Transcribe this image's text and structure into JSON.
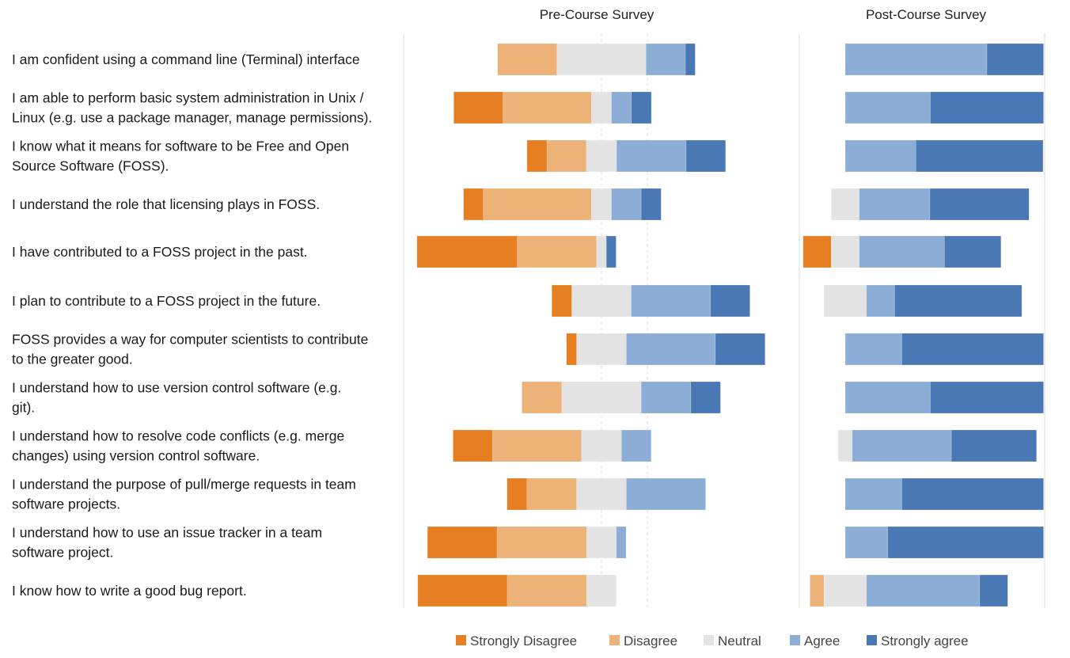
{
  "chart_data": {
    "type": "bar",
    "subtype": "diverging-stacked-horizontal",
    "panels": [
      {
        "title": "Pre-Course Survey",
        "series": [
          {
            "name": "Strongly Disagree",
            "values": [
              0,
              10.1,
              4.1,
              4.1,
              20.6,
              4.1,
              2.1,
              0,
              8.1,
              4.1,
              14.3,
              18.4
            ]
          },
          {
            "name": "Disagree",
            "values": [
              12.2,
              18.2,
              8.1,
              22.2,
              16.3,
              0,
              0,
              8.2,
              18.3,
              10.2,
              18.4,
              16.3
            ]
          },
          {
            "name": "Neutral",
            "values": [
              18.3,
              4.1,
              6.2,
              4.1,
              2.0,
              12.2,
              10.2,
              16.3,
              8.2,
              10.2,
              6.1,
              6.1
            ]
          },
          {
            "name": "Agree",
            "values": [
              8.1,
              4.1,
              14.3,
              6.1,
              0,
              16.3,
              18.3,
              10.2,
              6.1,
              16.3,
              2.0,
              0
            ]
          },
          {
            "name": "Strongly agree",
            "values": [
              2.0,
              4.1,
              8.1,
              4.1,
              2.0,
              8.1,
              10.2,
              6.1,
              0,
              0,
              0,
              0
            ]
          }
        ]
      },
      {
        "title": "Post-Course Survey",
        "series": [
          {
            "name": "Strongly Disagree",
            "values": [
              0,
              0,
              0,
              0,
              6.2,
              0,
              0,
              0,
              0,
              0,
              0,
              0
            ]
          },
          {
            "name": "Disagree",
            "values": [
              0,
              0,
              0,
              0,
              0,
              0,
              0,
              0,
              0,
              0,
              0,
              3.1
            ]
          },
          {
            "name": "Neutral",
            "values": [
              0,
              0,
              0,
              6.2,
              6.2,
              9.4,
              0,
              0,
              3.1,
              0,
              0,
              9.4
            ]
          },
          {
            "name": "Agree",
            "values": [
              31.3,
              18.8,
              15.6,
              15.6,
              18.8,
              6.2,
              12.5,
              18.8,
              21.9,
              12.5,
              9.4,
              25.0
            ]
          },
          {
            "name": "Strongly agree",
            "values": [
              12.5,
              25.0,
              28.1,
              21.9,
              12.5,
              28.1,
              31.3,
              25.0,
              18.8,
              31.3,
              34.4,
              6.2
            ]
          }
        ]
      }
    ],
    "categories": [
      "I am confident using a command line (Terminal) interface",
      "I am able to perform basic system administration in Unix / Linux (e.g. use a package manager, manage permissions).",
      "I know what it means for software to be Free and Open Source Software (FOSS).",
      "I understand the role that licensing plays in FOSS.",
      "I have contributed to a FOSS project in the past.",
      "I plan to contribute to a FOSS project in the future.",
      "FOSS provides a way for computer scientists to contribute to the greater good.",
      "I understand how to use version control software (e.g. git).",
      "I understand how to resolve code conflicts (e.g. merge changes) using version control software.",
      "I understand the purpose of pull/merge requests in team software projects.",
      "I understand how to use an issue tracker in a team software project.",
      "I know how to write a good bug report."
    ],
    "category_lines": [
      [
        "I am confident using a command line (Terminal) interface"
      ],
      [
        "I am able to perform basic system administration in Unix /",
        "Linux (e.g. use a package manager, manage permissions)."
      ],
      [
        "I know what it means for software to be Free and Open",
        "Source Software (FOSS)."
      ],
      [
        "I understand the role that licensing plays in FOSS."
      ],
      [
        "I have contributed to a FOSS project in the past."
      ],
      [
        "I plan to contribute to a FOSS project in the future."
      ],
      [
        "FOSS provides a way for computer scientists to contribute",
        "to the greater good."
      ],
      [
        "I understand how to use version control software (e.g.",
        "git)."
      ],
      [
        "I understand how to resolve code conflicts (e.g. merge",
        "changes) using version control software."
      ],
      [
        "I understand the purpose of pull/merge requests in team",
        "software projects."
      ],
      [
        "I understand how to use an issue tracker in a team",
        "software project."
      ],
      [
        "I know how to write a good bug report."
      ]
    ],
    "legend": {
      "position": "bottom",
      "entries": [
        "Strongly Disagree",
        "Disagree",
        "Neutral",
        "Agree",
        "Strongly agree"
      ]
    },
    "colors": {
      "Strongly Disagree": "#E67E22",
      "Disagree": "#EDB277",
      "Neutral": "#E3E3E3",
      "Agree": "#8CAED6",
      "Strongly agree": "#4A78B4"
    },
    "grid": true
  }
}
